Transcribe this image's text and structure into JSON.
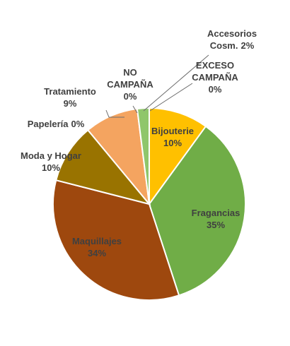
{
  "chart_data": {
    "type": "pie",
    "slices": [
      {
        "label": "Bijouterie",
        "value": 10,
        "value_label": "10%",
        "color": "#ffc000"
      },
      {
        "label": "Fragancias",
        "value": 35,
        "value_label": "35%",
        "color": "#70ad47"
      },
      {
        "label": "Maquillajes",
        "value": 34,
        "value_label": "34%",
        "color": "#9e480e"
      },
      {
        "label": "Moda y Hogar",
        "value": 10,
        "value_label": "10%",
        "color": "#997300"
      },
      {
        "label": "Papelería",
        "value": 0,
        "value_label": "0%",
        "color": "#5b9bd5"
      },
      {
        "label": "Tratamiento",
        "value": 9,
        "value_label": "9%",
        "color": "#f4a460"
      },
      {
        "label": "NO CAMPAÑA",
        "value": 0,
        "value_label": "0%",
        "color": "#4472c4"
      },
      {
        "label": "Accesorios Cosm.",
        "value": 2,
        "value_label": "2%",
        "color": "#8fc66b"
      },
      {
        "label": "EXCESO CAMPAÑA",
        "value": 0,
        "value_label": "0%",
        "color": "#a5a5a5"
      }
    ]
  }
}
